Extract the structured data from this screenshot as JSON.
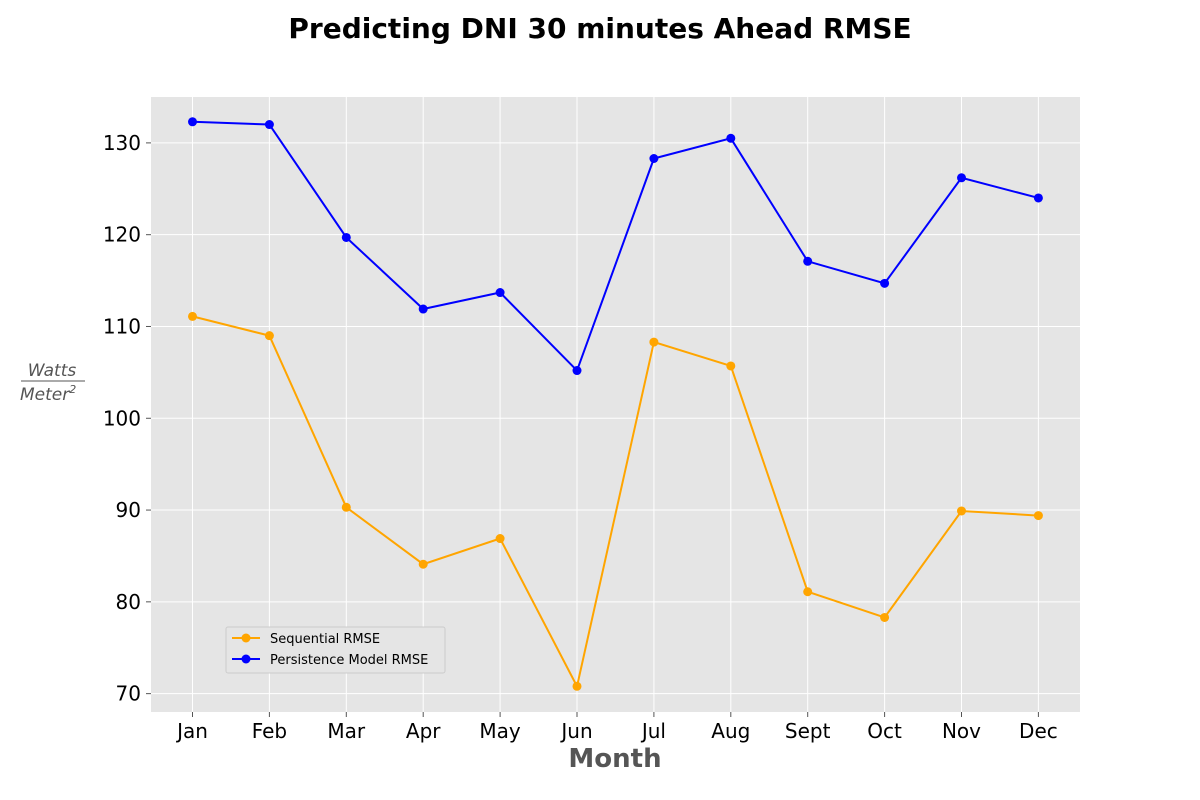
{
  "chart_data": {
    "type": "line",
    "title": "Predicting DNI 30 minutes Ahead RMSE",
    "xlabel": "Month",
    "ylabel": {
      "numerator": "Watts",
      "denominator": "Meter",
      "exponent": "2"
    },
    "categories": [
      "Jan",
      "Feb",
      "Mar",
      "Apr",
      "May",
      "Jun",
      "Jul",
      "Aug",
      "Sept",
      "Oct",
      "Nov",
      "Dec"
    ],
    "ylim": [
      68,
      135
    ],
    "yticks": [
      70,
      80,
      90,
      100,
      110,
      120,
      130
    ],
    "grid": true,
    "legend_position": "lower-left",
    "series": [
      {
        "name": "Sequential RMSE",
        "color": "#FFA500",
        "values": [
          111.1,
          109.0,
          90.3,
          84.1,
          86.9,
          70.8,
          108.3,
          105.7,
          81.1,
          78.3,
          89.9,
          89.4
        ]
      },
      {
        "name": "Persistence Model RMSE",
        "color": "#0000FF",
        "values": [
          132.3,
          132.0,
          119.7,
          111.9,
          113.7,
          105.2,
          128.3,
          130.5,
          117.1,
          114.7,
          126.2,
          124.0
        ]
      }
    ]
  }
}
